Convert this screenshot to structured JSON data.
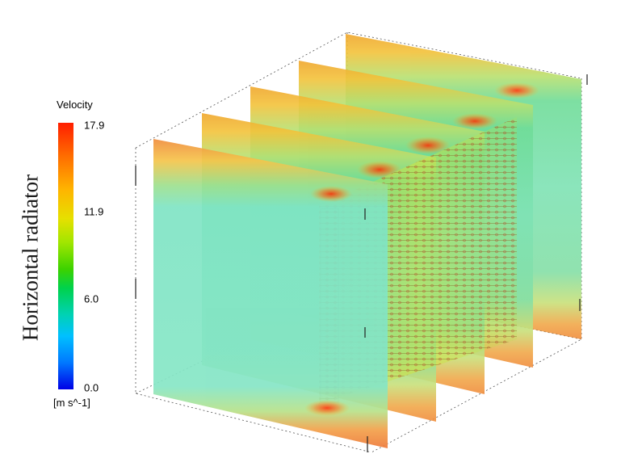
{
  "side_title": "Horizontal radiator",
  "legend": {
    "title": "Velocity",
    "unit": "[m s^-1]",
    "ticks": [
      "17.9",
      "11.9",
      "6.0",
      "0.0"
    ],
    "max_value": 17.9,
    "min_value": 0.0
  },
  "colors": {
    "high": "#ff1e00",
    "upper": "#ffb400",
    "mid": "#a0e600",
    "lower": "#00d2b4",
    "low": "#0000e6"
  }
}
